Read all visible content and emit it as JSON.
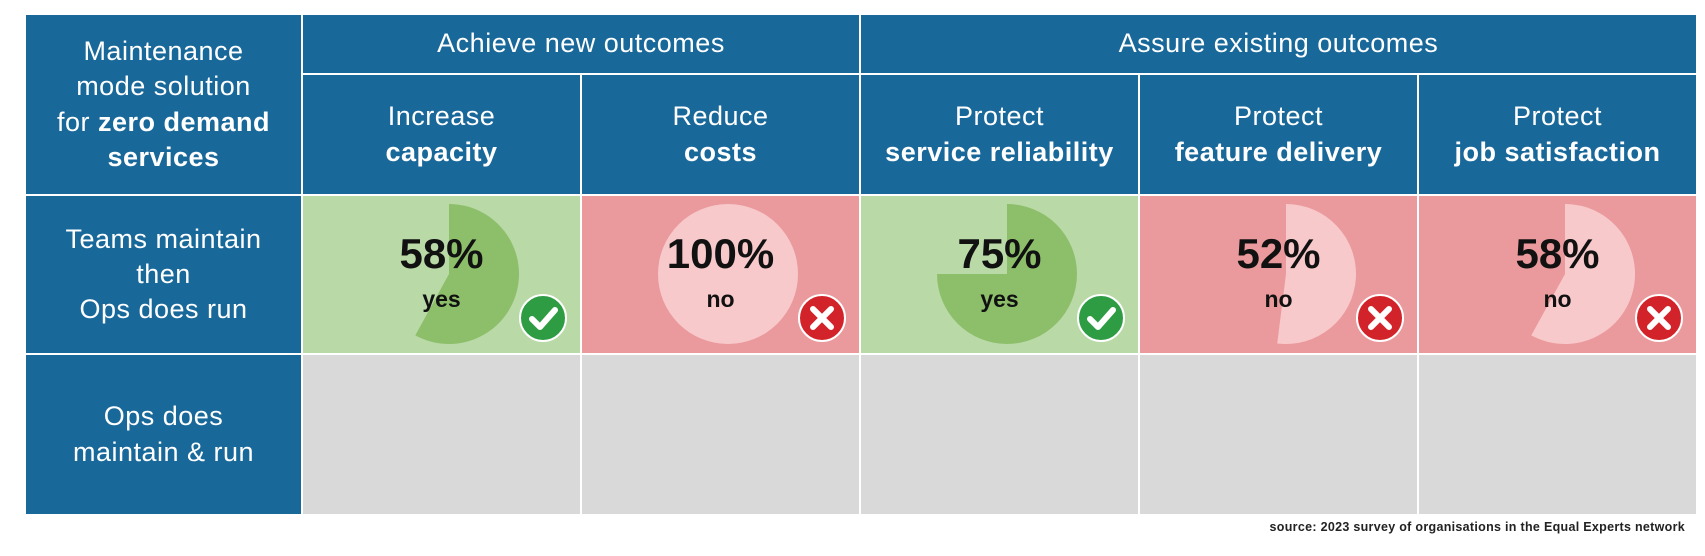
{
  "corner": {
    "line1": "Maintenance",
    "line2": "mode solution",
    "line3_prefix": "for ",
    "line3_bold": "zero demand",
    "line4_bold": "services"
  },
  "groups": [
    {
      "label": "Achieve new outcomes"
    },
    {
      "label": "Assure existing outcomes"
    }
  ],
  "columns": [
    {
      "line1": "Increase",
      "line2": "capacity"
    },
    {
      "line1": "Reduce",
      "line2": "costs"
    },
    {
      "line1": "Protect",
      "line2": "service reliability"
    },
    {
      "line1": "Protect",
      "line2": "feature delivery"
    },
    {
      "line1": "Protect",
      "line2": "job satisfaction"
    }
  ],
  "rows": [
    {
      "line1": "Teams maintain",
      "line2": "then",
      "line3": "Ops does run"
    },
    {
      "line1": "Ops does",
      "line2": "maintain & run"
    }
  ],
  "cells": [
    {
      "percent_text": "58%",
      "value": 58,
      "verdict": "yes",
      "status": "good",
      "icon": "check-circle-icon"
    },
    {
      "percent_text": "100%",
      "value": 100,
      "verdict": "no",
      "status": "bad",
      "icon": "cross-circle-icon"
    },
    {
      "percent_text": "75%",
      "value": 75,
      "verdict": "yes",
      "status": "good",
      "icon": "check-circle-icon"
    },
    {
      "percent_text": "52%",
      "value": 52,
      "verdict": "no",
      "status": "bad",
      "icon": "cross-circle-icon"
    },
    {
      "percent_text": "58%",
      "value": 58,
      "verdict": "no",
      "status": "bad",
      "icon": "cross-circle-icon"
    }
  ],
  "colors": {
    "header": "#19689a",
    "good_bg": "#b9d9a7",
    "good_pie": "#8dbf6b",
    "bad_bg": "#ea9a9c",
    "bad_pie": "#f8c9cb",
    "empty_bg": "#d9d9d9",
    "check": "#2e9c43",
    "cross": "#d3232a"
  },
  "source": "source: 2023 survey of organisations in the Equal Experts network"
}
